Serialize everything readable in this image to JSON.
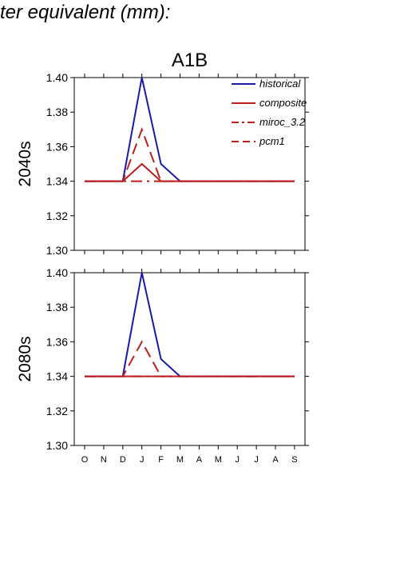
{
  "page": {
    "title": "ter equivalent (mm):"
  },
  "chart_data": [
    {
      "type": "line",
      "title": "A1B",
      "ylabel": "2040s",
      "xlabel": "",
      "categories": [
        "O",
        "N",
        "D",
        "J",
        "F",
        "M",
        "A",
        "M",
        "J",
        "J",
        "A",
        "S"
      ],
      "ylim": [
        1.3,
        1.4
      ],
      "yticks": [
        1.3,
        1.32,
        1.34,
        1.36,
        1.38,
        1.4
      ],
      "ytick_labels": [
        "1.30",
        "1.32",
        "1.34",
        "1.36",
        "1.38",
        "1.40"
      ],
      "show_xtick_labels": false,
      "grid": false,
      "legend_position": "top-right",
      "series": [
        {
          "name": "historical",
          "color": "#1a1aaa",
          "dash": "solid",
          "values": [
            1.34,
            1.34,
            1.34,
            1.4,
            1.35,
            1.34,
            1.34,
            1.34,
            1.34,
            1.34,
            1.34,
            1.34
          ]
        },
        {
          "name": "composite",
          "color": "#bb1f1f",
          "dash": "solid",
          "values": [
            1.34,
            1.34,
            1.34,
            1.35,
            1.34,
            1.34,
            1.34,
            1.34,
            1.34,
            1.34,
            1.34,
            1.34
          ]
        },
        {
          "name": "miroc_3.2",
          "color": "#bb1f1f",
          "dash": "dashdot",
          "values": [
            1.34,
            1.34,
            1.34,
            1.34,
            1.34,
            1.34,
            1.34,
            1.34,
            1.34,
            1.34,
            1.34,
            1.34
          ]
        },
        {
          "name": "pcm1",
          "color": "#bb1f1f",
          "dash": "dash",
          "values": [
            1.34,
            1.34,
            1.34,
            1.37,
            1.34,
            1.34,
            1.34,
            1.34,
            1.34,
            1.34,
            1.34,
            1.34
          ]
        }
      ]
    },
    {
      "type": "line",
      "title": "",
      "ylabel": "2080s",
      "xlabel": "",
      "categories": [
        "O",
        "N",
        "D",
        "J",
        "F",
        "M",
        "A",
        "M",
        "J",
        "J",
        "A",
        "S"
      ],
      "ylim": [
        1.3,
        1.4
      ],
      "yticks": [
        1.3,
        1.32,
        1.34,
        1.36,
        1.38,
        1.4
      ],
      "ytick_labels": [
        "1.30",
        "1.32",
        "1.34",
        "1.36",
        "1.38",
        "1.40"
      ],
      "show_xtick_labels": true,
      "grid": false,
      "legend_position": "none",
      "series": [
        {
          "name": "historical",
          "color": "#1a1aaa",
          "dash": "solid",
          "values": [
            1.34,
            1.34,
            1.34,
            1.4,
            1.35,
            1.34,
            1.34,
            1.34,
            1.34,
            1.34,
            1.34,
            1.34
          ]
        },
        {
          "name": "composite",
          "color": "#bb1f1f",
          "dash": "solid",
          "values": [
            1.34,
            1.34,
            1.34,
            1.34,
            1.34,
            1.34,
            1.34,
            1.34,
            1.34,
            1.34,
            1.34,
            1.34
          ]
        },
        {
          "name": "miroc_3.2",
          "color": "#bb1f1f",
          "dash": "dashdot",
          "values": [
            1.34,
            1.34,
            1.34,
            1.34,
            1.34,
            1.34,
            1.34,
            1.34,
            1.34,
            1.34,
            1.34,
            1.34
          ]
        },
        {
          "name": "pcm1",
          "color": "#bb1f1f",
          "dash": "dash",
          "values": [
            1.34,
            1.34,
            1.34,
            1.36,
            1.34,
            1.34,
            1.34,
            1.34,
            1.34,
            1.34,
            1.34,
            1.34
          ]
        }
      ]
    }
  ]
}
